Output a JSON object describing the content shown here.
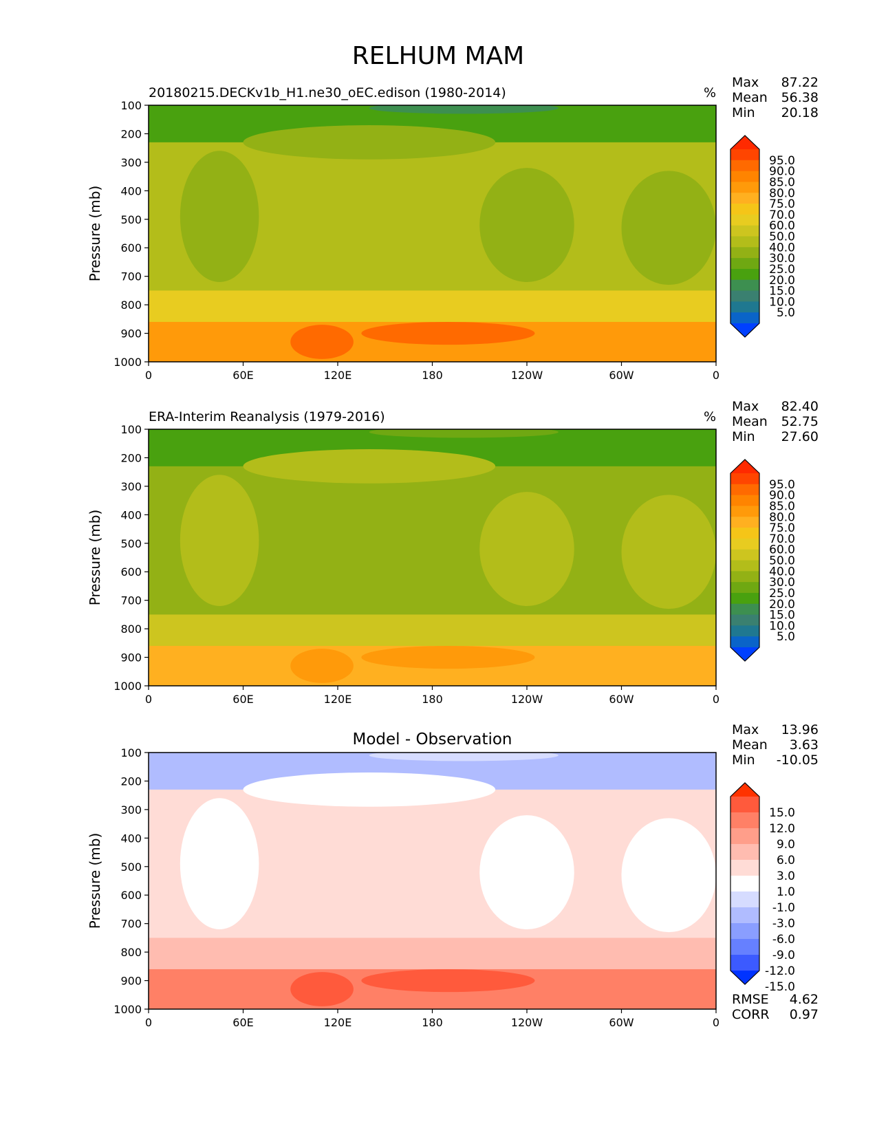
{
  "figure_title": "RELHUM MAM",
  "chart_data": [
    {
      "type": "heatmap",
      "title": "20180215.DECKv1b_H1.ne30_oEC.edison (1980-2014)",
      "units": "%",
      "ylabel": "Pressure (mb)",
      "xticks": [
        "0",
        "60E",
        "120E",
        "180",
        "120W",
        "60W",
        "0"
      ],
      "yticks": [
        "100",
        "200",
        "300",
        "400",
        "500",
        "600",
        "700",
        "800",
        "900",
        "1000"
      ],
      "ylim": [
        100,
        1000
      ],
      "xlim": [
        0,
        360
      ],
      "stats": [
        {
          "label": "Max",
          "value": "87.22"
        },
        {
          "label": "Mean",
          "value": "56.38"
        },
        {
          "label": "Min",
          "value": "20.18"
        }
      ],
      "colorbar": {
        "levels": [
          "95.0",
          "90.0",
          "85.0",
          "80.0",
          "75.0",
          "70.0",
          "60.0",
          "50.0",
          "40.0",
          "30.0",
          "25.0",
          "20.0",
          "15.0",
          "10.0",
          "5.0"
        ],
        "colors": [
          "#ff2a00",
          "#ff4500",
          "#ff6a00",
          "#ff8400",
          "#ff9a0a",
          "#ffb020",
          "#f5c518",
          "#e8cc20",
          "#cdc51f",
          "#b3bd1a",
          "#93b115",
          "#6fa812",
          "#49a10f",
          "#3d8f50",
          "#3a8070",
          "#1f7890",
          "#0a64c8",
          "#0040ff"
        ]
      },
      "field_colors": {
        "upper": "#49a10f",
        "mid": "#b3bd1a",
        "low": "#e8cc20",
        "bottom": "#ff9a0a",
        "moist": "#ff6a00",
        "dry": "#93b115",
        "deep": "#3d8f50"
      }
    },
    {
      "type": "heatmap",
      "title": "ERA-Interim Reanalysis (1979-2016)",
      "units": "%",
      "ylabel": "Pressure (mb)",
      "xticks": [
        "0",
        "60E",
        "120E",
        "180",
        "120W",
        "60W",
        "0"
      ],
      "yticks": [
        "100",
        "200",
        "300",
        "400",
        "500",
        "600",
        "700",
        "800",
        "900",
        "1000"
      ],
      "ylim": [
        100,
        1000
      ],
      "xlim": [
        0,
        360
      ],
      "stats": [
        {
          "label": "Max",
          "value": "82.40"
        },
        {
          "label": "Mean",
          "value": "52.75"
        },
        {
          "label": "Min",
          "value": "27.60"
        }
      ],
      "colorbar": {
        "levels": [
          "95.0",
          "90.0",
          "85.0",
          "80.0",
          "75.0",
          "70.0",
          "60.0",
          "50.0",
          "40.0",
          "30.0",
          "25.0",
          "20.0",
          "15.0",
          "10.0",
          "5.0"
        ],
        "colors": [
          "#ff2a00",
          "#ff4500",
          "#ff6a00",
          "#ff8400",
          "#ff9a0a",
          "#ffb020",
          "#f5c518",
          "#e8cc20",
          "#cdc51f",
          "#b3bd1a",
          "#93b115",
          "#6fa812",
          "#49a10f",
          "#3d8f50",
          "#3a8070",
          "#1f7890",
          "#0a64c8",
          "#0040ff"
        ]
      },
      "field_colors": {
        "upper": "#49a10f",
        "mid": "#93b115",
        "low": "#cdc51f",
        "bottom": "#ffb020",
        "moist": "#ff9a0a",
        "dry": "#b3bd1a",
        "deep": "#6fa812"
      }
    },
    {
      "type": "heatmap",
      "title": "Model - Observation",
      "units": "",
      "ylabel": "Pressure (mb)",
      "xticks": [
        "0",
        "60E",
        "120E",
        "180",
        "120W",
        "60W",
        "0"
      ],
      "yticks": [
        "100",
        "200",
        "300",
        "400",
        "500",
        "600",
        "700",
        "800",
        "900",
        "1000"
      ],
      "ylim": [
        100,
        1000
      ],
      "xlim": [
        0,
        360
      ],
      "stats": [
        {
          "label": "Max",
          "value": "13.96"
        },
        {
          "label": "Mean",
          "value": "3.63"
        },
        {
          "label": "Min",
          "value": "-10.05"
        }
      ],
      "colorbar": {
        "levels": [
          "15.0",
          "12.0",
          "9.0",
          "6.0",
          "3.0",
          "1.0",
          "-1.0",
          "-3.0",
          "-6.0",
          "-9.0",
          "-12.0",
          "-15.0"
        ],
        "colors": [
          "#ff3300",
          "#ff5a3c",
          "#ff8066",
          "#ff9e8a",
          "#ffbcb0",
          "#ffdcd6",
          "#ffffff",
          "#d6dcff",
          "#b0bcff",
          "#8a9eff",
          "#6680ff",
          "#3c5aff",
          "#0033ff"
        ]
      },
      "field_colors": {
        "upper": "#b0bcff",
        "mid": "#ffdcd6",
        "low": "#ffbcb0",
        "bottom": "#ff8066",
        "moist": "#ff5a3c",
        "dry": "#ffffff",
        "deep": "#d6dcff"
      },
      "extra_stats": [
        {
          "label": "RMSE",
          "value": "4.62"
        },
        {
          "label": "CORR",
          "value": "0.97"
        }
      ]
    }
  ]
}
